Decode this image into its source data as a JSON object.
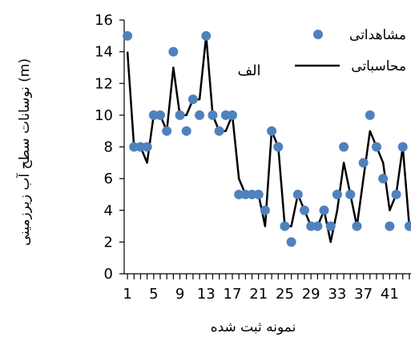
{
  "chart_data": {
    "type": "line",
    "xlabel": "نمونه ثبت شده",
    "ylabel": "نوسانات سطح آب زیرزمینی (m)",
    "annotation": "الف",
    "ylim": [
      0,
      16
    ],
    "xlim": [
      0.5,
      44.5
    ],
    "yticks": [
      0,
      2,
      4,
      6,
      8,
      10,
      12,
      14,
      16
    ],
    "xtick_labels": [
      1,
      5,
      9,
      13,
      17,
      21,
      25,
      29,
      33,
      37,
      41
    ],
    "grid": false,
    "legend_position": "top-right",
    "x": [
      1,
      2,
      3,
      4,
      5,
      6,
      7,
      8,
      9,
      10,
      11,
      12,
      13,
      14,
      15,
      16,
      17,
      18,
      19,
      20,
      21,
      22,
      23,
      24,
      25,
      26,
      27,
      28,
      29,
      30,
      31,
      32,
      33,
      34,
      35,
      36,
      37,
      38,
      39,
      40,
      41,
      42,
      43,
      44
    ],
    "series": [
      {
        "name": "مشاهداتی",
        "style": "markers",
        "color": "#4F81BD",
        "values": [
          15,
          8,
          8,
          8,
          10,
          10,
          9,
          14,
          10,
          9,
          11,
          10,
          15,
          10,
          9,
          10,
          10,
          5,
          5,
          5,
          5,
          4,
          9,
          8,
          3,
          2,
          5,
          4,
          3,
          3,
          4,
          3,
          5,
          8,
          5,
          3,
          7,
          10,
          8,
          6,
          3,
          5,
          8,
          3
        ]
      },
      {
        "name": "محاسباتی",
        "style": "line",
        "color": "#000000",
        "values": [
          14,
          8,
          8,
          7,
          10,
          10,
          9,
          13,
          10,
          10,
          11,
          11,
          15,
          10,
          9,
          9,
          10,
          6,
          5,
          5,
          5,
          3,
          9,
          8,
          3,
          3,
          5,
          4,
          3,
          3,
          4,
          2,
          4,
          7,
          5,
          3,
          6,
          9,
          8,
          7,
          4,
          5,
          8,
          3
        ]
      }
    ]
  }
}
